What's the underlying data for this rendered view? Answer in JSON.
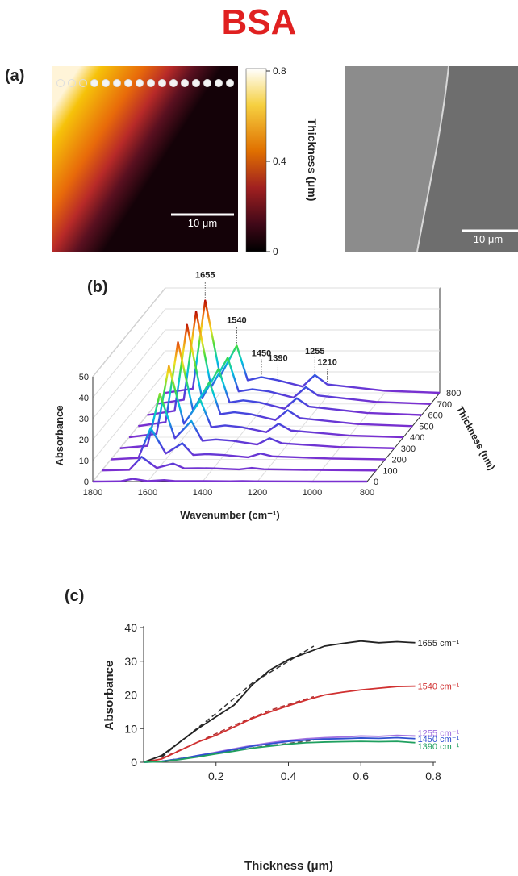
{
  "title": "BSA",
  "panel_a": {
    "label": "(a)",
    "colorbar": {
      "label": "Thickness (μm)",
      "lim": [
        0,
        0.8
      ],
      "ticks": [
        0,
        0.4,
        0.8
      ]
    },
    "scale_bars": [
      "10 μm",
      "10 μm"
    ]
  },
  "chart_data": [
    {
      "type": "waterfall3d",
      "panel_label": "(b)",
      "x_label": "Wavenumber (cm⁻¹)",
      "y_label": "Absorbance",
      "z_label": "Thickness (nm)",
      "x": [
        1800,
        1700,
        1655,
        1600,
        1540,
        1500,
        1450,
        1390,
        1300,
        1255,
        1210,
        1000,
        800
      ],
      "xlim": [
        1800,
        800
      ],
      "xticks": [
        1800,
        1600,
        1400,
        1200,
        1000,
        800
      ],
      "ylim": [
        0,
        50
      ],
      "yticks": [
        0,
        10,
        20,
        30,
        40,
        50
      ],
      "zlim": [
        0,
        800
      ],
      "zticks": [
        0,
        100,
        200,
        300,
        400,
        500,
        600,
        700,
        800
      ],
      "colormap": [
        "#7b2fd0",
        "#3a4be0",
        "#00c4e0",
        "#3fdc3f",
        "#f0e020",
        "#f07010",
        "#b00000"
      ],
      "series": [
        {
          "values": [
            0,
            0.1,
            1.3,
            0.2,
            0.7,
            0.2,
            0.2,
            0.2,
            0.1,
            0.2,
            0.1,
            0,
            0
          ]
        },
        {
          "values": [
            0,
            0.3,
            6.5,
            1.2,
            3.3,
            1,
            1.1,
            1,
            0.5,
            1.2,
            0.6,
            0.2,
            0
          ]
        },
        {
          "values": [
            0,
            0.7,
            15,
            2.8,
            7.7,
            2.1,
            2.5,
            2.1,
            1,
            2.8,
            1.4,
            0.4,
            0
          ]
        },
        {
          "values": [
            0,
            1.2,
            26,
            4.8,
            13,
            3.6,
            4.2,
            3.6,
            1.8,
            4.8,
            2.4,
            0.6,
            0
          ]
        },
        {
          "values": [
            0,
            1.6,
            34,
            6.4,
            17.6,
            4.8,
            5.6,
            4.8,
            2.4,
            6.4,
            3.2,
            0.8,
            0
          ]
        },
        {
          "values": [
            0,
            1.9,
            40,
            7.6,
            21,
            5.7,
            6.6,
            5.7,
            2.9,
            7.6,
            3.8,
            1,
            0
          ]
        },
        {
          "values": [
            0,
            2,
            43,
            8,
            22,
            6,
            7,
            6,
            3,
            8,
            4,
            1,
            0
          ]
        },
        {
          "values": [
            0,
            2,
            44,
            8,
            22,
            6,
            7,
            6,
            3,
            8,
            4,
            1,
            0
          ]
        },
        {
          "values": [
            0,
            2,
            44,
            8,
            22.5,
            6,
            7.5,
            6,
            3,
            8.5,
            4,
            1,
            0
          ]
        }
      ],
      "peaks": [
        1655,
        1540,
        1450,
        1390,
        1255,
        1210
      ]
    },
    {
      "type": "line",
      "panel_label": "(c)",
      "x_label": "Thickness (μm)",
      "y_label": "Absorbance",
      "xlim": [
        0,
        0.8
      ],
      "xticks": [
        0.2,
        0.4,
        0.6,
        0.8
      ],
      "ylim": [
        0,
        40
      ],
      "yticks": [
        0,
        10,
        20,
        30,
        40
      ],
      "x": [
        0,
        0.05,
        0.1,
        0.15,
        0.2,
        0.25,
        0.3,
        0.35,
        0.4,
        0.45,
        0.5,
        0.55,
        0.6,
        0.65,
        0.7,
        0.75
      ],
      "series": [
        {
          "name": "1655 cm⁻¹",
          "color": "#222222",
          "values": [
            0,
            2,
            6,
            10,
            13.5,
            17,
            23,
            27.5,
            30.5,
            32.5,
            34.5,
            35.3,
            36,
            35.5,
            35.8,
            35.5
          ]
        },
        {
          "name": "1540 cm⁻¹",
          "color": "#d03030",
          "values": [
            0,
            1,
            3.5,
            6,
            8,
            10.5,
            13,
            15,
            16.8,
            18.5,
            20,
            20.8,
            21.5,
            22,
            22.5,
            22.6
          ]
        },
        {
          "name": "1255 cm⁻¹",
          "color": "#a070e0",
          "values": [
            0,
            0.3,
            1,
            2,
            3,
            4,
            5,
            5.8,
            6.5,
            7,
            7.3,
            7.5,
            7.8,
            7.7,
            8,
            7.8
          ]
        },
        {
          "name": "1450 cm⁻¹",
          "color": "#3050d0",
          "values": [
            0,
            0.3,
            1,
            2,
            2.8,
            3.8,
            4.8,
            5.5,
            6.2,
            6.6,
            6.9,
            7,
            7.2,
            7.1,
            7.3,
            7
          ]
        },
        {
          "name": "1390 cm⁻¹",
          "color": "#20a060",
          "values": [
            0,
            0.2,
            0.8,
            1.6,
            2.5,
            3.3,
            4.2,
            4.8,
            5.4,
            5.8,
            6,
            6.1,
            6.2,
            6.1,
            6.2,
            5.8
          ]
        }
      ],
      "fits": [
        {
          "color": "#333333",
          "x": [
            0.05,
            0.1,
            0.2,
            0.3,
            0.4,
            0.47
          ],
          "values": [
            1.5,
            6,
            14.5,
            23.5,
            30,
            34.5
          ]
        },
        {
          "color": "#b03030",
          "x": [
            0.05,
            0.15,
            0.25,
            0.35,
            0.47
          ],
          "values": [
            1.2,
            6,
            11,
            15.5,
            19.5
          ]
        },
        {
          "color": "#555555",
          "x": [
            0.05,
            0.2,
            0.35,
            0.47
          ],
          "values": [
            0.3,
            2.8,
            5,
            6.5
          ]
        }
      ]
    }
  ]
}
